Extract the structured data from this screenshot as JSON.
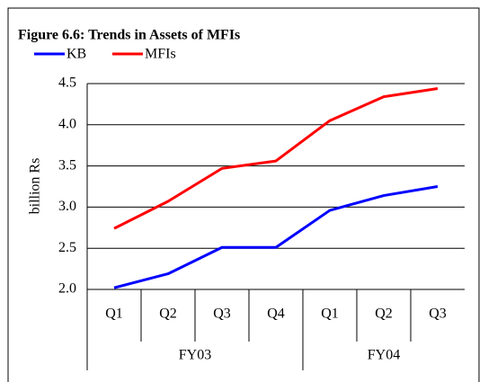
{
  "chart_data": {
    "type": "line",
    "title": "Figure 6.6: Trends in Assets of MFIs",
    "y_label": "billion Rs",
    "categories": [
      "Q1",
      "Q2",
      "Q3",
      "Q4",
      "Q1",
      "Q2",
      "Q3"
    ],
    "groups": [
      {
        "label": "FY03",
        "count": 4
      },
      {
        "label": "FY04",
        "count": 3
      }
    ],
    "series": [
      {
        "name": "KB",
        "color": "#0000ff",
        "values": [
          2.02,
          2.19,
          2.51,
          2.51,
          2.96,
          3.14,
          3.25
        ]
      },
      {
        "name": "MFIs",
        "color": "#ff0000",
        "values": [
          2.74,
          3.07,
          3.47,
          3.56,
          4.05,
          4.34,
          4.44
        ]
      }
    ],
    "ylim": [
      2.0,
      4.5
    ],
    "yticks": [
      {
        "value": 2.0,
        "label": "2.0"
      },
      {
        "value": 2.5,
        "label": "2.5"
      },
      {
        "value": 3.0,
        "label": "3.0"
      },
      {
        "value": 3.5,
        "label": "3.5"
      },
      {
        "value": 4.0,
        "label": "4.0"
      },
      {
        "value": 4.5,
        "label": "4.5"
      }
    ],
    "grid": true
  }
}
